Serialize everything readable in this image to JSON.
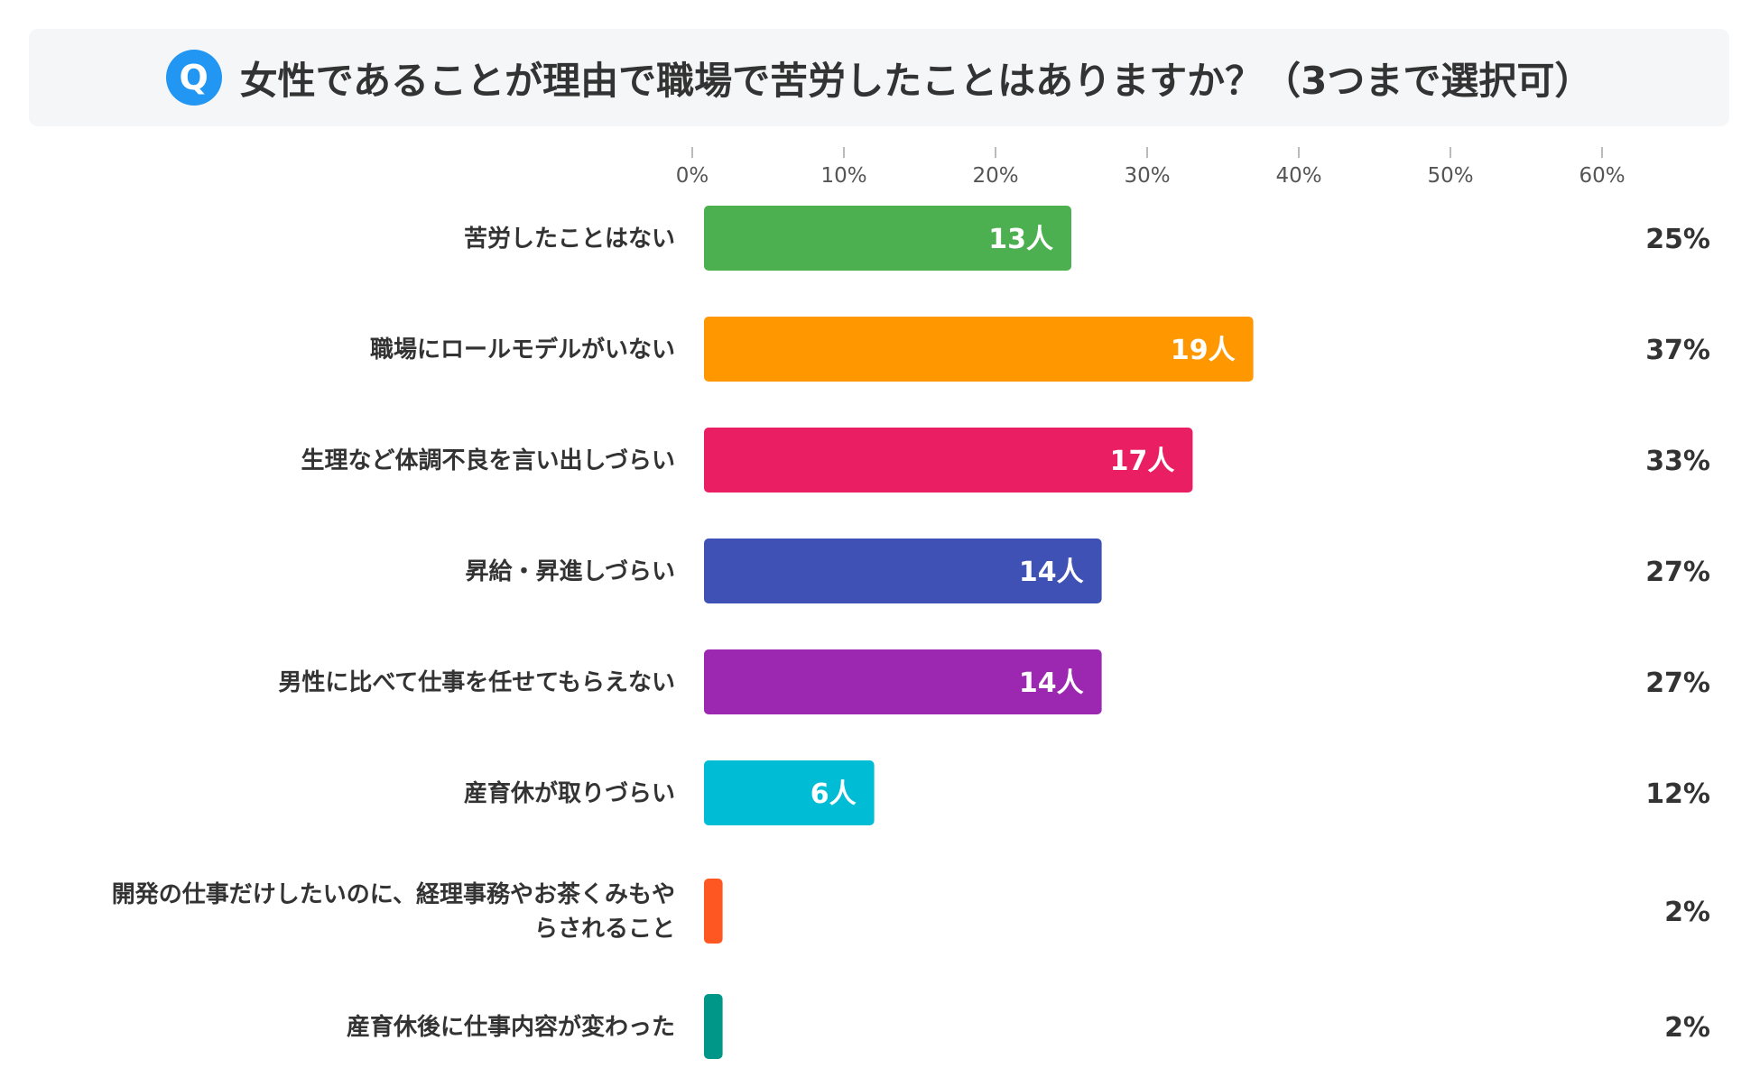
{
  "header": {
    "badge": "Q",
    "question": "女性であることが理由で職場で苦労したことはありますか？（3つまで選択可）"
  },
  "chart_data": {
    "type": "bar",
    "orientation": "horizontal",
    "title": "女性であることが理由で職場で苦労したことはありますか？（3つまで選択可）",
    "xlim": [
      0,
      60
    ],
    "x_ticks": [
      0,
      10,
      20,
      30,
      40,
      50,
      60
    ],
    "x_tick_labels": [
      "0%",
      "10%",
      "20%",
      "30%",
      "40%",
      "50%",
      "60%"
    ],
    "categories": [
      [
        "苦労したことはない"
      ],
      [
        "職場にロールモデルがいない"
      ],
      [
        "生理など体調不良を言い出しづらい"
      ],
      [
        "昇給・昇進しづらい"
      ],
      [
        "男性に比べて仕事を任せてもらえない"
      ],
      [
        "産育休が取りづらい"
      ],
      [
        "開発の仕事だけしたいのに、経理事務やお茶くみもや",
        "らされること"
      ],
      [
        "産育休後に仕事内容が変わった"
      ]
    ],
    "percent_values": [
      25,
      37,
      33,
      27,
      27,
      12,
      2,
      2
    ],
    "percent_labels": [
      "25%",
      "37%",
      "33%",
      "27%",
      "27%",
      "12%",
      "2%",
      "2%"
    ],
    "count_labels": [
      "13人",
      "19人",
      "17人",
      "14人",
      "14人",
      "6人",
      "",
      ""
    ],
    "colors": [
      "#4caf50",
      "#ff9800",
      "#e91e63",
      "#3f51b5",
      "#9c27b0",
      "#00bcd4",
      "#ff5722",
      "#009688"
    ],
    "grid": false
  }
}
